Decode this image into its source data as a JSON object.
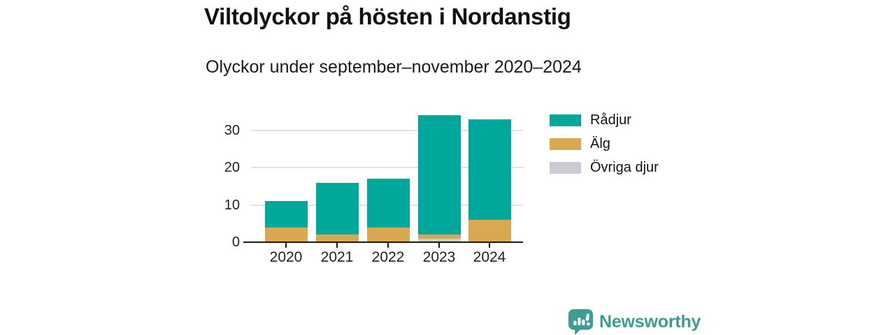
{
  "chart_data": {
    "type": "bar",
    "stacked": true,
    "title": "Viltolyckor på hösten i Nordanstig",
    "subtitle": "Olyckor under september–november 2020–2024",
    "categories": [
      "2020",
      "2021",
      "2022",
      "2023",
      "2024"
    ],
    "series": [
      {
        "name": "Rådjur",
        "color": "#00a79b",
        "values": [
          7,
          14,
          13,
          32,
          27
        ]
      },
      {
        "name": "Älg",
        "color": "#d8a950",
        "values": [
          4,
          2,
          4,
          1,
          6
        ]
      },
      {
        "name": "Övriga djur",
        "color": "#cbcbd3",
        "values": [
          0,
          0,
          0,
          1,
          0
        ]
      }
    ],
    "stack_order_bottom_to_top": [
      "Övriga djur",
      "Älg",
      "Rådjur"
    ],
    "totals": [
      11,
      16,
      17,
      34,
      33
    ],
    "yticks": [
      0,
      10,
      20,
      30
    ],
    "ylim": [
      0,
      36.7
    ],
    "grid": "horizontal",
    "gridline_color": "#e3e3e3",
    "axis_color": "#1a1a1a",
    "legend_position": "right-top"
  },
  "branding": {
    "logo_text": "Newsworthy",
    "logo_icon": "bar-chart-speech-bubble-icon",
    "logo_color": "#3e9c95"
  }
}
